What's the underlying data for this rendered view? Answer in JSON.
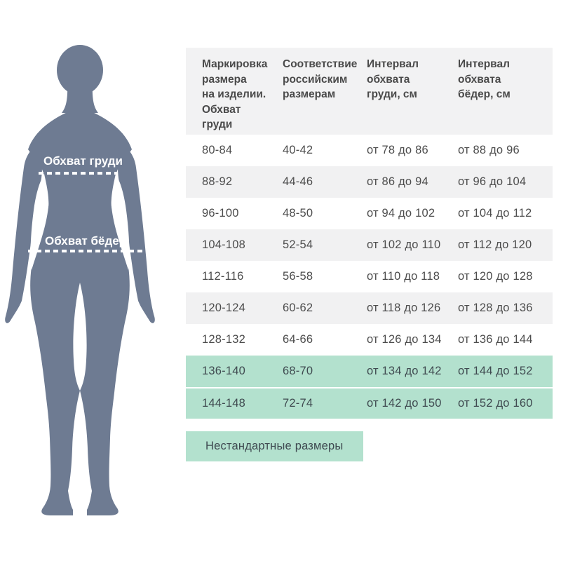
{
  "page": {
    "background": "#ffffff"
  },
  "figure": {
    "silhouette_color": "#6e7b92",
    "chest_label": "Обхват груди",
    "hips_label": "Обхват бёдер",
    "measure_line_color": "#ffffff"
  },
  "table": {
    "header_bg": "#f2f2f3",
    "stripe_bg": "#f1f1f2",
    "highlight_bg": "#b3e1ce",
    "text_color": "#4c4c4c",
    "headers": [
      "Маркировка\nразмера\nна изделии.\nОбхват\nгруди",
      "Соответствие\nроссийским\nразмерам",
      "Интервал\nобхвата\nгруди, см",
      "Интервал\nобхвата\nбёдер, см"
    ],
    "rows": [
      {
        "cells": [
          "80-84",
          "40-42",
          "от 78 до 86",
          "от 88 до 96"
        ],
        "highlight": false
      },
      {
        "cells": [
          "88-92",
          "44-46",
          "от 86 до 94",
          "от 96 до 104"
        ],
        "highlight": false
      },
      {
        "cells": [
          "96-100",
          "48-50",
          "от 94 до 102",
          "от 104 до 112"
        ],
        "highlight": false
      },
      {
        "cells": [
          "104-108",
          "52-54",
          "от 102 до 110",
          "от 112 до 120"
        ],
        "highlight": false
      },
      {
        "cells": [
          "112-116",
          "56-58",
          "от 110 до 118",
          "от 120 до 128"
        ],
        "highlight": false
      },
      {
        "cells": [
          "120-124",
          "60-62",
          "от 118 до 126",
          "от 128 до 136"
        ],
        "highlight": false
      },
      {
        "cells": [
          "128-132",
          "64-66",
          "от 126 до 134",
          "от 136 до 144"
        ],
        "highlight": false
      },
      {
        "cells": [
          "136-140",
          "68-70",
          "от 134 до 142",
          "от 144 до 152"
        ],
        "highlight": true
      },
      {
        "cells": [
          "144-148",
          "72-74",
          "от 142 до 150",
          "от 152 до 160"
        ],
        "highlight": true
      }
    ]
  },
  "legend": {
    "label": "Нестандартные размеры",
    "bg": "#b3e1ce"
  },
  "chart_data": {
    "type": "table",
    "columns": [
      "Маркировка размера на изделии. Обхват груди",
      "Соответствие российским размерам",
      "Интервал обхвата груди, см",
      "Интервал обхвата бёдер, см"
    ],
    "rows": [
      [
        "80-84",
        "40-42",
        "от 78 до 86",
        "от 88 до 96"
      ],
      [
        "88-92",
        "44-46",
        "от 86 до 94",
        "от 96 до 104"
      ],
      [
        "96-100",
        "48-50",
        "от 94 до 102",
        "от 104 до 112"
      ],
      [
        "104-108",
        "52-54",
        "от 102 до 110",
        "от 112 до 120"
      ],
      [
        "112-116",
        "56-58",
        "от 110 до 118",
        "от 120 до 128"
      ],
      [
        "120-124",
        "60-62",
        "от 118 до 126",
        "от 128 до 136"
      ],
      [
        "128-132",
        "64-66",
        "от 126 до 134",
        "от 136 до 144"
      ],
      [
        "136-140",
        "68-70",
        "от 134 до 142",
        "от 144 до 152"
      ],
      [
        "144-148",
        "72-74",
        "от 142 до 150",
        "от 152 до 160"
      ]
    ],
    "highlighted_rows": [
      7,
      8
    ],
    "highlight_meaning": "Нестандартные размеры",
    "figure_annotations": [
      "Обхват груди",
      "Обхват бёдер"
    ]
  }
}
